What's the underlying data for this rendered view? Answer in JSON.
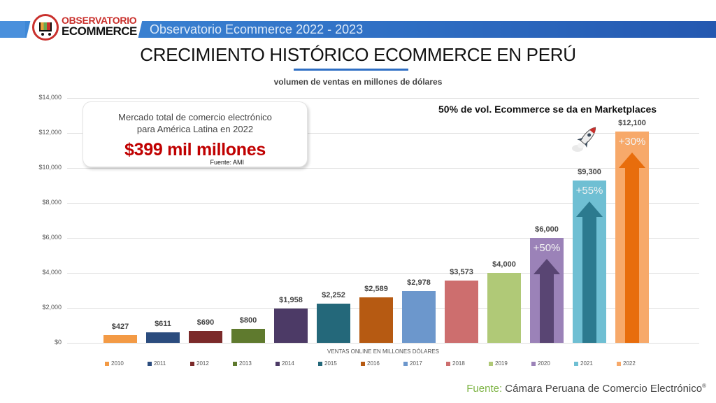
{
  "header": {
    "logo_line1": "OBSERVATORIO",
    "logo_line2": "ECOMMERCE",
    "title": "Observatorio Ecommerce 2022 - 2023",
    "band_color": "#2f6fc4"
  },
  "page": {
    "title": "CRECIMIENTO HISTÓRICO ECOMMERCE EN PERÚ",
    "subtitle": "volumen de ventas en millones de dólares"
  },
  "callout": {
    "line1": "Mercado total de comercio electrónico",
    "line2": "para América Latina en 2022",
    "big": "$399 mil millones",
    "source": "Fuente: AMI"
  },
  "note": {
    "marketplaces": "50% de vol. Ecommerce se da en Marketplaces",
    "icon": "rocket-icon"
  },
  "footer": {
    "source_label": "Fuente:",
    "source_text": " Cámara Peruana de Comercio Electrónico",
    "registered": "®"
  },
  "chart_data": {
    "type": "bar",
    "title": "CRECIMIENTO HISTÓRICO ECOMMERCE EN PERÚ",
    "subtitle": "volumen de ventas en millones de dólares",
    "xlabel": "VENTAS ONLINE EN MILLONES DÓLARES",
    "ylabel": "",
    "ylim": [
      0,
      14000
    ],
    "yticks": [
      0,
      2000,
      4000,
      6000,
      8000,
      10000,
      12000,
      14000
    ],
    "ytick_labels": [
      "$0",
      "$2,000",
      "$4,000",
      "$6,000",
      "$8,000",
      "$10,000",
      "$12,000",
      "$14,000"
    ],
    "grid": true,
    "legend_position": "bottom",
    "categories": [
      "2010",
      "2011",
      "2012",
      "2013",
      "2014",
      "2015",
      "2016",
      "2017",
      "2018",
      "2019",
      "2020",
      "2021",
      "2022"
    ],
    "values": [
      427,
      611,
      690,
      800,
      1958,
      2252,
      2589,
      2978,
      3573,
      4000,
      6000,
      9300,
      12100
    ],
    "value_labels": [
      "$427",
      "$611",
      "$690",
      "$800",
      "$1,958",
      "$2,252",
      "$2,589",
      "$2,978",
      "$3,573",
      "$4,000",
      "$6,000",
      "$9,300",
      "$12,100"
    ],
    "colors": [
      "#f39a45",
      "#2b4c7e",
      "#7b2a2a",
      "#5f7a2e",
      "#4c3a66",
      "#24687a",
      "#b65a12",
      "#6c97cc",
      "#cd6e6e",
      "#b0c977",
      "#9b82b8",
      "#6fbfd3",
      "#f7a96a"
    ],
    "annotations": [
      {
        "category": "2020",
        "text": "+50%",
        "arrow_color": "#594573"
      },
      {
        "category": "2021",
        "text": "+55%",
        "arrow_color": "#2c7a8f"
      },
      {
        "category": "2022",
        "text": "+30%",
        "arrow_color": "#e86d0c"
      }
    ]
  }
}
